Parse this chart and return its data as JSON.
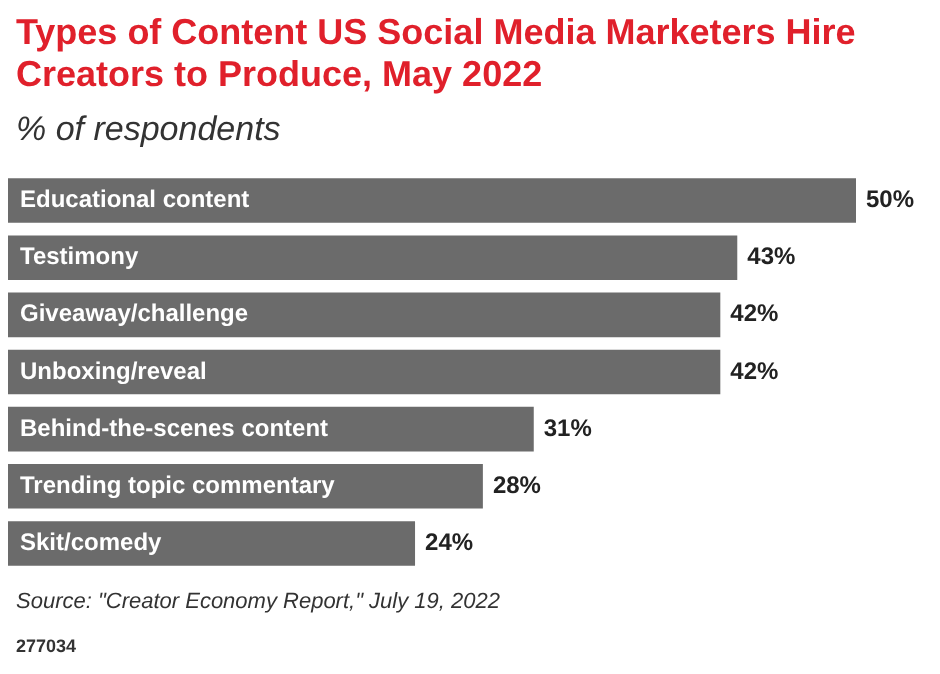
{
  "chart_data": {
    "type": "bar",
    "orientation": "horizontal",
    "title": "Types of Content US Social Media Marketers Hire Creators to Produce, May 2022",
    "subtitle": "% of respondents",
    "categories": [
      "Educational content",
      "Testimony",
      "Giveaway/challenge",
      "Unboxing/reveal",
      "Behind-the-scenes content",
      "Trending topic commentary",
      "Skit/comedy"
    ],
    "values": [
      50,
      43,
      42,
      42,
      31,
      28,
      24
    ],
    "value_labels": [
      "50%",
      "43%",
      "42%",
      "42%",
      "31%",
      "28%",
      "24%"
    ],
    "color": "#6b6b6b",
    "legend": false,
    "annotations": [
      "Source: \"Creator Economy Report,\" July 19, 2022",
      "277034"
    ]
  }
}
